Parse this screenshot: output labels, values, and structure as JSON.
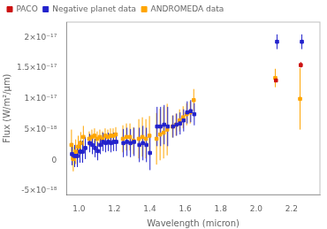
{
  "chart_data": {
    "type": "scatter",
    "title": "",
    "xlabel": "Wavelength (micron)",
    "ylabel": "Flux (W/m²/µm)",
    "xlim": [
      0.93,
      2.36
    ],
    "ylim": [
      -5.6e-18,
      2.25e-17
    ],
    "xticks": [
      {
        "value": 1.0,
        "label": "1.0"
      },
      1.2,
      1.4,
      1.6,
      1.8,
      {
        "value": 2.0,
        "label": "2.0"
      },
      2.2
    ],
    "yticks": [
      {
        "value": -5e-18,
        "label": "-5×10⁻¹⁸"
      },
      {
        "value": 0,
        "label": "0"
      },
      {
        "value": 5e-18,
        "label": "5×10⁻¹⁸"
      },
      {
        "value": 1e-17,
        "label": "1×10⁻¹⁷"
      },
      {
        "value": 1.5e-17,
        "label": "1.5×10⁻¹⁷"
      },
      {
        "value": 2e-17,
        "label": "2×10⁻¹⁷"
      }
    ],
    "grid": false,
    "legend": "upper left",
    "marker": "square",
    "series": [
      {
        "name": "ANDROMEDA data",
        "color": "#FFA500",
        "x": [
          0.958,
          0.968,
          0.982,
          0.996,
          1.01,
          1.025,
          1.058,
          1.073,
          1.088,
          1.103,
          1.118,
          1.133,
          1.148,
          1.163,
          1.178,
          1.193,
          1.208,
          1.248,
          1.268,
          1.288,
          1.308,
          1.338,
          1.358,
          1.378,
          1.398,
          1.438,
          1.458,
          1.478,
          1.498,
          1.528,
          1.548,
          1.568,
          1.588,
          1.608,
          1.628,
          1.648,
          2.108,
          2.248
        ],
        "values": [
          2.5e-18,
          2e-19,
          1.4e-18,
          2.2e-18,
          2.8e-18,
          3.8e-18,
          3.5e-18,
          3.8e-18,
          4e-18,
          3.5e-18,
          3.8e-18,
          3.5e-18,
          4e-18,
          3.8e-18,
          4e-18,
          4e-18,
          4.2e-18,
          3.5e-18,
          3.8e-18,
          3.8e-18,
          3.2e-18,
          3.5e-18,
          3.8e-18,
          3.5e-18,
          4e-18,
          3.5e-18,
          4.2e-18,
          4.5e-18,
          5e-18,
          5.5e-18,
          5.8e-18,
          6.5e-18,
          7e-18,
          7.5e-18,
          7.8e-18,
          9.8e-18,
          1.34e-17,
          1e-17
        ],
        "yerr_lo": [
          2.5e-18,
          2e-18,
          2e-18,
          1.8e-18,
          1.8e-18,
          1.8e-18,
          1.2e-18,
          1.2e-18,
          1.2e-18,
          1.2e-18,
          1.2e-18,
          1.2e-18,
          1.2e-18,
          1.2e-18,
          1.2e-18,
          1.2e-18,
          1.2e-18,
          2.2e-18,
          2.2e-18,
          2.2e-18,
          2.2e-18,
          3.2e-18,
          3.2e-18,
          3.2e-18,
          3.2e-18,
          4.2e-18,
          4.2e-18,
          4.2e-18,
          4.2e-18,
          1.8e-18,
          1.8e-18,
          1.8e-18,
          1.8e-18,
          1.8e-18,
          1.8e-18,
          1.8e-18,
          1.5e-18,
          5e-18
        ],
        "yerr_hi": [
          2.5e-18,
          2e-18,
          2e-18,
          1.8e-18,
          1.8e-18,
          1.8e-18,
          1.2e-18,
          1.2e-18,
          1.2e-18,
          1.2e-18,
          1.2e-18,
          1.2e-18,
          1.2e-18,
          1.2e-18,
          1.2e-18,
          1.2e-18,
          1.2e-18,
          2.2e-18,
          2.2e-18,
          2.2e-18,
          2.2e-18,
          3.2e-18,
          3.2e-18,
          3.2e-18,
          3.2e-18,
          4.2e-18,
          4.2e-18,
          4.2e-18,
          4.2e-18,
          1.8e-18,
          1.8e-18,
          1.8e-18,
          1.8e-18,
          1.8e-18,
          1.8e-18,
          1.8e-18,
          1.5e-18,
          5e-18
        ]
      },
      {
        "name": "Negative planet data",
        "color": "#2222cc",
        "x": [
          0.961,
          0.976,
          0.991,
          1.006,
          1.021,
          1.036,
          1.061,
          1.076,
          1.091,
          1.106,
          1.121,
          1.136,
          1.151,
          1.166,
          1.181,
          1.196,
          1.211,
          1.251,
          1.271,
          1.291,
          1.311,
          1.341,
          1.361,
          1.381,
          1.401,
          1.441,
          1.461,
          1.481,
          1.501,
          1.531,
          1.551,
          1.571,
          1.591,
          1.611,
          1.631,
          1.651,
          2.118,
          2.258
        ],
        "values": [
          1e-18,
          7e-19,
          7e-19,
          1.4e-18,
          1.4e-18,
          2e-18,
          2.8e-18,
          2.5e-18,
          2e-18,
          1.5e-18,
          2.5e-18,
          3e-18,
          2.8e-18,
          3e-18,
          2.8e-18,
          3e-18,
          3e-18,
          2.8e-18,
          3e-18,
          2.8e-18,
          3e-18,
          2.5e-18,
          2.8e-18,
          2.5e-18,
          1.2e-18,
          5.5e-18,
          5.5e-18,
          5.8e-18,
          5.5e-18,
          5.5e-18,
          5.8e-18,
          6e-18,
          6.5e-18,
          7.8e-18,
          8e-18,
          7.5e-18,
          1.93e-17,
          1.93e-17
        ],
        "yerr_lo": [
          1.8e-18,
          1.8e-18,
          1.8e-18,
          1.8e-18,
          1.8e-18,
          1.8e-18,
          1.5e-18,
          1.5e-18,
          1.5e-18,
          1.5e-18,
          1.5e-18,
          1.5e-18,
          1.5e-18,
          1.5e-18,
          1.5e-18,
          1.5e-18,
          1.5e-18,
          2.3e-18,
          2.3e-18,
          2.3e-18,
          2.3e-18,
          2.8e-18,
          2.8e-18,
          2.8e-18,
          2.8e-18,
          3.2e-18,
          3.2e-18,
          3.2e-18,
          3.2e-18,
          1.8e-18,
          1.8e-18,
          1.8e-18,
          1.8e-18,
          1.8e-18,
          1.8e-18,
          1.8e-18,
          1.2e-18,
          1.2e-18
        ],
        "yerr_hi": [
          1.8e-18,
          1.8e-18,
          1.8e-18,
          1.8e-18,
          1.8e-18,
          1.8e-18,
          1.5e-18,
          1.5e-18,
          1.5e-18,
          1.5e-18,
          1.5e-18,
          1.5e-18,
          1.5e-18,
          1.5e-18,
          1.5e-18,
          1.5e-18,
          1.5e-18,
          2.3e-18,
          2.3e-18,
          2.3e-18,
          2.3e-18,
          2.8e-18,
          2.8e-18,
          2.8e-18,
          2.8e-18,
          3.2e-18,
          3.2e-18,
          3.2e-18,
          3.2e-18,
          1.8e-18,
          1.8e-18,
          1.8e-18,
          1.8e-18,
          1.8e-18,
          1.8e-18,
          1.8e-18,
          1.2e-18,
          1.2e-18
        ]
      },
      {
        "name": "PACO",
        "color": "#cc1111",
        "x": [
          2.112,
          2.252
        ],
        "values": [
          1.3e-17,
          1.55e-17
        ],
        "yerr_lo": [
          2e-19,
          4e-19
        ],
        "yerr_hi": [
          2e-19,
          5e-19
        ]
      }
    ]
  }
}
